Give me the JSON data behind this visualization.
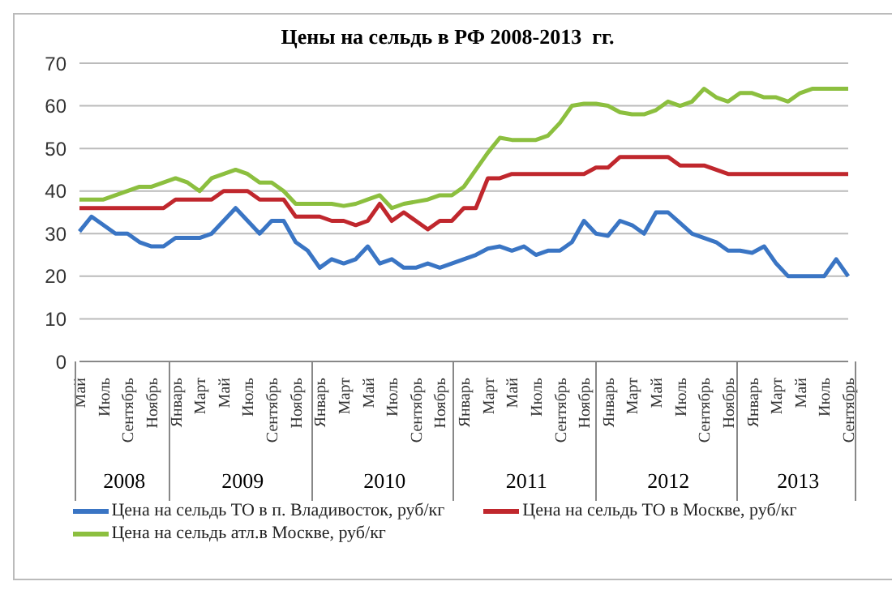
{
  "chart_data": {
    "type": "line",
    "title": "Цены на сельдь в РФ 2008-2013  гг.",
    "categories": [
      "Май",
      null,
      "Июль",
      null,
      "Сентябрь",
      null,
      "Ноябрь",
      null,
      "Январь",
      null,
      "Март",
      null,
      "Май",
      null,
      "Июль",
      null,
      "Сентябрь",
      null,
      "Ноябрь",
      null,
      "Январь",
      null,
      "Март",
      null,
      "Май",
      null,
      "Июль",
      null,
      "Сентябрь",
      null,
      "Ноябрь",
      null,
      "Январь",
      null,
      "Март",
      null,
      "Май",
      null,
      "Июль",
      null,
      "Сентябрь",
      null,
      "Ноябрь",
      null,
      "Январь",
      null,
      "Март",
      null,
      "Май",
      null,
      "Июль",
      null,
      "Сентябрь",
      null,
      "Ноябрь",
      null,
      "Январь",
      null,
      "Март",
      null,
      "Май",
      null,
      "Июль",
      null,
      "Сентябрь"
    ],
    "series": [
      {
        "name": "Цена на сельдь ТО в п. Владивосток,  руб/кг",
        "color": "#3a75c4",
        "values": [
          30.5,
          34,
          32,
          30,
          30,
          28,
          27,
          27,
          29,
          29,
          29,
          30,
          33,
          36,
          33,
          30,
          33,
          33,
          28,
          26,
          22,
          24,
          23,
          24,
          27,
          23,
          24,
          22,
          22,
          23,
          22,
          23,
          24,
          25,
          26.5,
          27,
          26,
          27,
          25,
          26,
          26,
          28,
          33,
          30,
          29.5,
          33,
          32,
          30,
          35,
          35,
          32.5,
          30,
          29,
          28,
          26,
          26,
          25.5,
          27,
          23,
          20,
          20,
          20,
          20,
          24,
          20
        ]
      },
      {
        "name": "Цена на сельдь ТО в Москве, руб/кг",
        "color": "#c0272d",
        "values": [
          36,
          36,
          36,
          36,
          36,
          36,
          36,
          36,
          38,
          38,
          38,
          38,
          40,
          40,
          40,
          38,
          38,
          38,
          34,
          34,
          34,
          33,
          33,
          32,
          33,
          37,
          33,
          35,
          33,
          31,
          33,
          33,
          36,
          36,
          43,
          43,
          44,
          44,
          44,
          44,
          44,
          44,
          44,
          45.5,
          45.5,
          48,
          48,
          48,
          48,
          48,
          46,
          46,
          46,
          45,
          44,
          44,
          44,
          44,
          44,
          44,
          44,
          44,
          44,
          44,
          44
        ]
      },
      {
        "name": "Цена на сельдь атл.в Москве, руб/кг",
        "color": "#8cbf3f",
        "values": [
          38,
          38,
          38,
          39,
          40,
          41,
          41,
          42,
          43,
          42,
          40,
          43,
          44,
          45,
          44,
          42,
          42,
          40,
          37,
          37,
          37,
          37,
          36.5,
          37,
          38,
          39,
          36,
          37,
          37.5,
          38,
          39,
          39,
          41,
          45,
          49,
          52.5,
          52,
          52,
          52,
          53,
          56,
          60,
          60.5,
          60.5,
          60,
          58.5,
          58,
          58,
          59,
          61,
          60,
          61,
          64,
          62,
          61,
          63,
          63,
          62,
          62,
          61,
          63,
          64,
          64,
          64,
          64
        ]
      }
    ],
    "annotations": [
      "2008",
      "2009",
      "2010",
      "2011",
      "2012",
      "2013"
    ],
    "ylim": [
      0,
      70
    ],
    "yticks": [
      0,
      10,
      20,
      30,
      40,
      50,
      60,
      70
    ],
    "grid": "y",
    "legend": "bottom",
    "marker": "none",
    "line_style": "solid"
  }
}
